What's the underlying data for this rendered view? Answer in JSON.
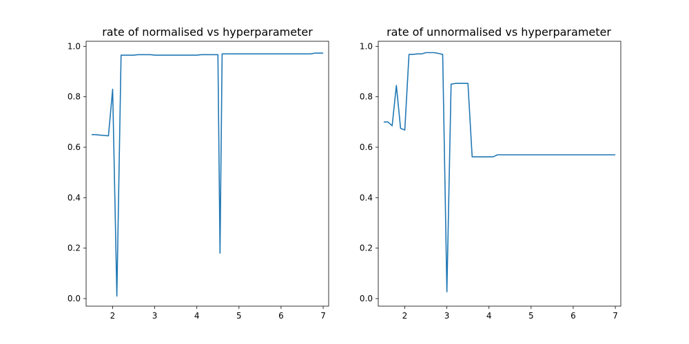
{
  "chart_data": [
    {
      "type": "line",
      "title": "rate of normalised vs hyperparameter",
      "xlabel": "",
      "ylabel": "",
      "xlim": [
        1.37,
        7.13
      ],
      "ylim": [
        -0.03,
        1.02
      ],
      "xticks": [
        2,
        3,
        4,
        5,
        6,
        7
      ],
      "xtick_labels": [
        "2",
        "3",
        "4",
        "5",
        "6",
        "7"
      ],
      "yticks": [
        0.0,
        0.2,
        0.4,
        0.6,
        0.8,
        1.0
      ],
      "ytick_labels": [
        "0.0",
        "0.2",
        "0.4",
        "0.6",
        "0.8",
        "1.0"
      ],
      "grid": false,
      "color": "#1f77b4",
      "series": [
        {
          "x": [
            1.5,
            1.6,
            1.7,
            1.8,
            1.9,
            2.0,
            2.1,
            2.2,
            2.3,
            2.4,
            2.5,
            2.6,
            2.7,
            2.8,
            2.9,
            3.0,
            3.1,
            3.2,
            3.3,
            3.4,
            3.5,
            3.6,
            3.7,
            3.8,
            3.9,
            4.0,
            4.1,
            4.2,
            4.3,
            4.4,
            4.5,
            4.55,
            4.6,
            4.7,
            4.8,
            4.9,
            5.0,
            5.1,
            5.2,
            5.3,
            5.4,
            5.5,
            5.6,
            5.7,
            5.8,
            5.9,
            6.0,
            6.1,
            6.2,
            6.3,
            6.4,
            6.5,
            6.6,
            6.7,
            6.8,
            6.9,
            7.0
          ],
          "y": [
            0.65,
            0.65,
            0.648,
            0.647,
            0.645,
            0.83,
            0.01,
            0.965,
            0.965,
            0.965,
            0.965,
            0.967,
            0.967,
            0.967,
            0.967,
            0.965,
            0.965,
            0.965,
            0.965,
            0.965,
            0.965,
            0.965,
            0.965,
            0.965,
            0.965,
            0.965,
            0.967,
            0.967,
            0.967,
            0.967,
            0.967,
            0.18,
            0.97,
            0.97,
            0.97,
            0.97,
            0.97,
            0.97,
            0.97,
            0.97,
            0.97,
            0.97,
            0.97,
            0.97,
            0.97,
            0.97,
            0.97,
            0.97,
            0.97,
            0.97,
            0.97,
            0.97,
            0.97,
            0.97,
            0.973,
            0.973,
            0.973
          ]
        }
      ]
    },
    {
      "type": "line",
      "title": "rate of unnormalised vs hyperparameter",
      "xlabel": "",
      "ylabel": "",
      "xlim": [
        1.37,
        7.13
      ],
      "ylim": [
        -0.03,
        1.02
      ],
      "xticks": [
        2,
        3,
        4,
        5,
        6,
        7
      ],
      "xtick_labels": [
        "2",
        "3",
        "4",
        "5",
        "6",
        "7"
      ],
      "yticks": [
        0.0,
        0.2,
        0.4,
        0.6,
        0.8,
        1.0
      ],
      "ytick_labels": [
        "0.0",
        "0.2",
        "0.4",
        "0.6",
        "0.8",
        "1.0"
      ],
      "grid": false,
      "color": "#1f77b4",
      "series": [
        {
          "x": [
            1.5,
            1.6,
            1.7,
            1.8,
            1.9,
            2.0,
            2.1,
            2.2,
            2.3,
            2.4,
            2.5,
            2.6,
            2.7,
            2.8,
            2.9,
            3.0,
            3.1,
            3.2,
            3.3,
            3.4,
            3.5,
            3.6,
            3.7,
            3.8,
            3.9,
            4.0,
            4.1,
            4.2,
            4.3,
            4.4,
            4.5,
            4.6,
            4.7,
            4.8,
            4.9,
            5.0,
            5.5,
            6.0,
            6.5,
            7.0
          ],
          "y": [
            0.7,
            0.7,
            0.685,
            0.845,
            0.675,
            0.668,
            0.968,
            0.968,
            0.97,
            0.97,
            0.975,
            0.975,
            0.975,
            0.972,
            0.968,
            0.027,
            0.85,
            0.853,
            0.853,
            0.853,
            0.853,
            0.562,
            0.562,
            0.562,
            0.562,
            0.562,
            0.562,
            0.57,
            0.57,
            0.57,
            0.57,
            0.57,
            0.57,
            0.57,
            0.57,
            0.57,
            0.57,
            0.57,
            0.57,
            0.57
          ],
          "_note": ""
        }
      ]
    }
  ]
}
